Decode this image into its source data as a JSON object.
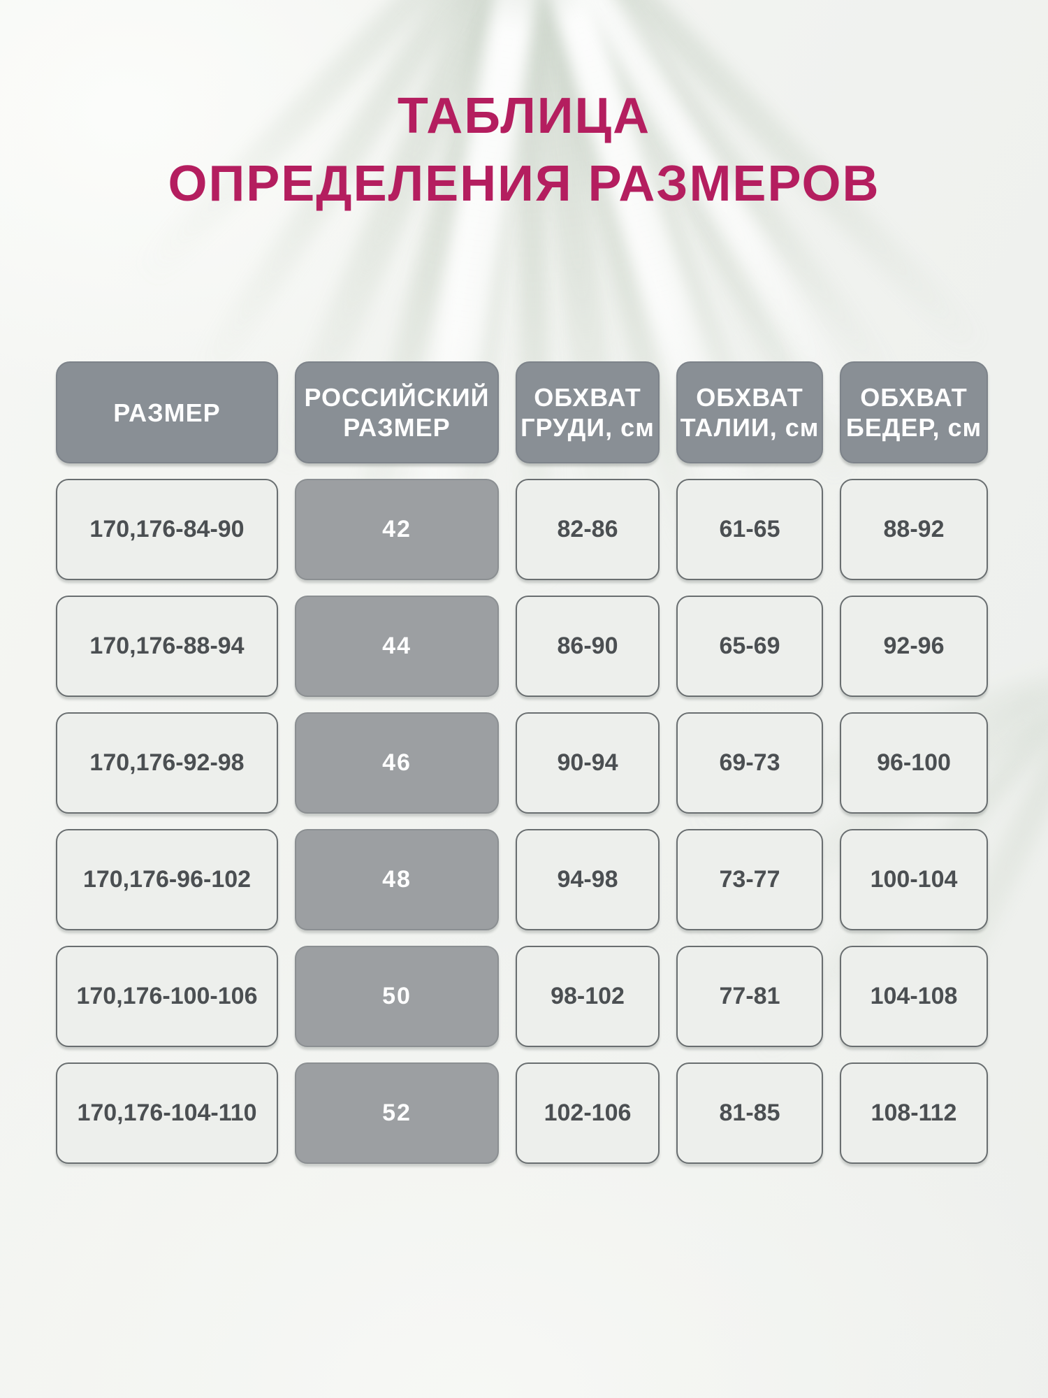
{
  "title": {
    "line1": "ТАБЛИЦА",
    "line2": "ОПРЕДЕЛЕНИЯ РАЗМЕРОВ"
  },
  "colors": {
    "title_text": "#b41e5f",
    "header_bg": "#898f95",
    "header_text": "#ffffff",
    "size_cell_bg": "#9c9fa2",
    "light_cell_bg": "#edefec",
    "cell_border": "#696e70",
    "cell_text": "#4b4f52",
    "background": "#f1f3f0"
  },
  "table": {
    "header_lines": [
      {
        "line1": "РАЗМЕР",
        "line2": ""
      },
      {
        "line1": "РОССИЙСКИЙ",
        "line2": "РАЗМЕР"
      },
      {
        "line1": "ОБХВАТ",
        "line2": "ГРУДИ, см"
      },
      {
        "line1": "ОБХВАТ",
        "line2": "ТАЛИИ, см"
      },
      {
        "line1": "ОБХВАТ",
        "line2": "БЕДЕР, см"
      }
    ]
  },
  "chart_data": {
    "type": "table",
    "title": "ТАБЛИЦА ОПРЕДЕЛЕНИЯ РАЗМЕРОВ",
    "columns": [
      "РАЗМЕР",
      "РОССИЙСКИЙ РАЗМЕР",
      "ОБХВАТ ГРУДИ, см",
      "ОБХВАТ ТАЛИИ, см",
      "ОБХВАТ БЕДЕР, см"
    ],
    "rows": [
      [
        "170,176-84-90",
        "42",
        "82-86",
        "61-65",
        "88-92"
      ],
      [
        "170,176-88-94",
        "44",
        "86-90",
        "65-69",
        "92-96"
      ],
      [
        "170,176-92-98",
        "46",
        "90-94",
        "69-73",
        "96-100"
      ],
      [
        "170,176-96-102",
        "48",
        "94-98",
        "73-77",
        "100-104"
      ],
      [
        "170,176-100-106",
        "50",
        "98-102",
        "77-81",
        "104-108"
      ],
      [
        "170,176-104-110",
        "52",
        "102-106",
        "81-85",
        "108-112"
      ]
    ]
  }
}
